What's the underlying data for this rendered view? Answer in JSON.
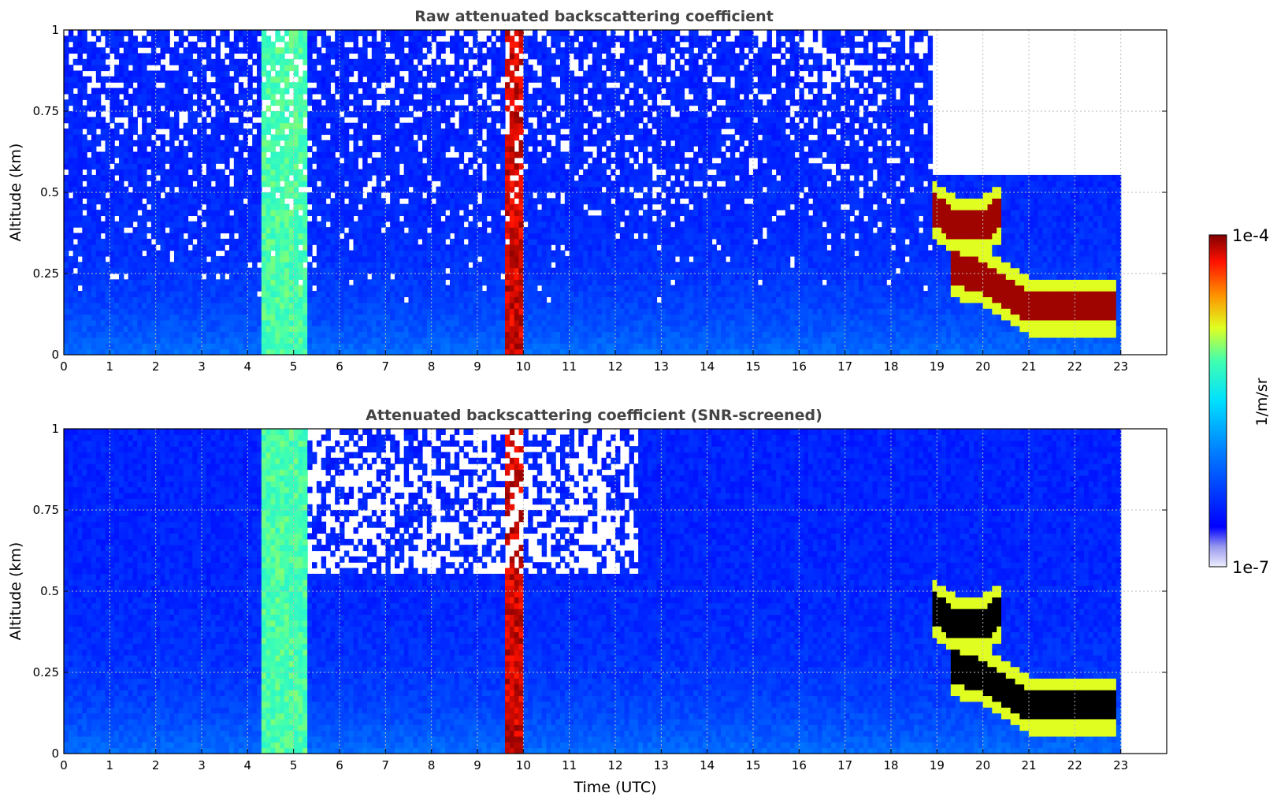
{
  "chart_data": [
    {
      "type": "heatmap",
      "title": "Raw attenuated backscattering coefficient",
      "xlabel": "",
      "ylabel": "Altitude (km)",
      "xlim": [
        0,
        24
      ],
      "ylim": [
        0,
        1
      ],
      "x_ticks": [
        "0",
        "1",
        "2",
        "3",
        "4",
        "5",
        "6",
        "7",
        "8",
        "9",
        "10",
        "11",
        "12",
        "13",
        "14",
        "15",
        "16",
        "17",
        "18",
        "19",
        "20",
        "21",
        "22",
        "23"
      ],
      "y_ticks": [
        "0",
        "0.25",
        "0.5",
        "0.75",
        "1"
      ],
      "grid": true,
      "data_end_hour": 23,
      "features": [
        {
          "kind": "noise",
          "t0": 0,
          "t1": 18.9,
          "alt0": 0.15,
          "alt1": 1.0,
          "level": 0.22
        },
        {
          "kind": "band",
          "t0": 4.35,
          "t1": 5.3,
          "level": 0.62
        },
        {
          "kind": "band",
          "t0": 9.6,
          "t1": 10.0,
          "level": 0.95
        },
        {
          "kind": "layer",
          "points": [
            [
              18.9,
              0.45
            ],
            [
              19.4,
              0.4
            ],
            [
              20.0,
              0.4
            ],
            [
              20.4,
              0.44
            ]
          ],
          "level": 0.98
        },
        {
          "kind": "layer",
          "points": [
            [
              19.3,
              0.27
            ],
            [
              20.0,
              0.24
            ],
            [
              21.0,
              0.15
            ],
            [
              22.0,
              0.15
            ],
            [
              22.9,
              0.15
            ]
          ],
          "level": 0.98
        },
        {
          "kind": "clear",
          "t0": 18.9,
          "t1": 23,
          "alt_above": 0.55
        }
      ]
    },
    {
      "type": "heatmap",
      "title": "Attenuated backscattering coefficient (SNR-screened)",
      "xlabel": "Time (UTC)",
      "ylabel": "Altitude (km)",
      "xlim": [
        0,
        24
      ],
      "ylim": [
        0,
        1
      ],
      "x_ticks": [
        "0",
        "1",
        "2",
        "3",
        "4",
        "5",
        "6",
        "7",
        "8",
        "9",
        "10",
        "11",
        "12",
        "13",
        "14",
        "15",
        "16",
        "17",
        "18",
        "19",
        "20",
        "21",
        "22",
        "23"
      ],
      "y_ticks": [
        "0",
        "0.25",
        "0.5",
        "0.75",
        "1"
      ],
      "grid": true,
      "data_end_hour": 23,
      "features": [
        {
          "kind": "screened",
          "t0": 5.3,
          "t1": 12.5,
          "alt_above": 0.55
        },
        {
          "kind": "band",
          "t0": 4.35,
          "t1": 5.3,
          "level": 0.62
        },
        {
          "kind": "band",
          "t0": 9.6,
          "t1": 10.0,
          "level": 0.95
        },
        {
          "kind": "saturated",
          "points": [
            [
              18.9,
              0.45
            ],
            [
              19.4,
              0.4
            ],
            [
              20.0,
              0.4
            ],
            [
              20.4,
              0.44
            ]
          ]
        },
        {
          "kind": "saturated",
          "points": [
            [
              19.3,
              0.27
            ],
            [
              20.0,
              0.24
            ],
            [
              21.0,
              0.15
            ],
            [
              22.0,
              0.15
            ],
            [
              22.9,
              0.15
            ]
          ]
        }
      ]
    }
  ],
  "colorbar": {
    "label": "1/m/sr",
    "max_label": "1e-4",
    "min_label": "1e-7",
    "scale": "log",
    "colormap": "jet"
  }
}
